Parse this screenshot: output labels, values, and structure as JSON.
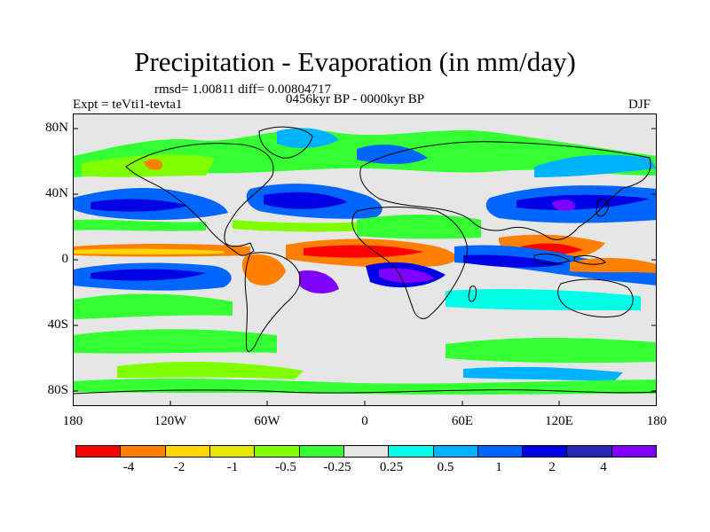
{
  "title": "Precipitation - Evaporation (in mm/day)",
  "stats": "rmsd= 1.00811 diff= 0.00804717",
  "left_label": "Expt = teVti1-tevta1",
  "center_label": "0456kyr BP - 0000kyr BP",
  "right_label": "DJF",
  "y_ticks": [
    "80N",
    "40N",
    "0",
    "40S",
    "80S"
  ],
  "x_ticks": [
    "180",
    "120W",
    "60W",
    "0",
    "60E",
    "120E",
    "180"
  ],
  "colorbar": {
    "colors": [
      "#ff0000",
      "#ff8000",
      "#ffd700",
      "#e6e600",
      "#80ff00",
      "#33ff33",
      "#e6e6e6",
      "#00ffe6",
      "#00b3ff",
      "#0066ff",
      "#0000e6",
      "#2626b3",
      "#8000ff"
    ],
    "labels": [
      "-4",
      "-2",
      "-1",
      "-0.5",
      "-0.25",
      "0.25",
      "0.5",
      "1",
      "2",
      "4"
    ]
  },
  "map_colors": {
    "background": "#e6e6e6",
    "land": "#e6e6e6",
    "green": "#33ff33",
    "light_green": "#80ff00",
    "cyan": "#00ffe6",
    "light_blue": "#00b3ff",
    "blue": "#0066ff",
    "dark_blue": "#0000e6",
    "purple": "#8000ff",
    "orange": "#ff8000",
    "red": "#ff0000",
    "yellow": "#ffd700"
  }
}
